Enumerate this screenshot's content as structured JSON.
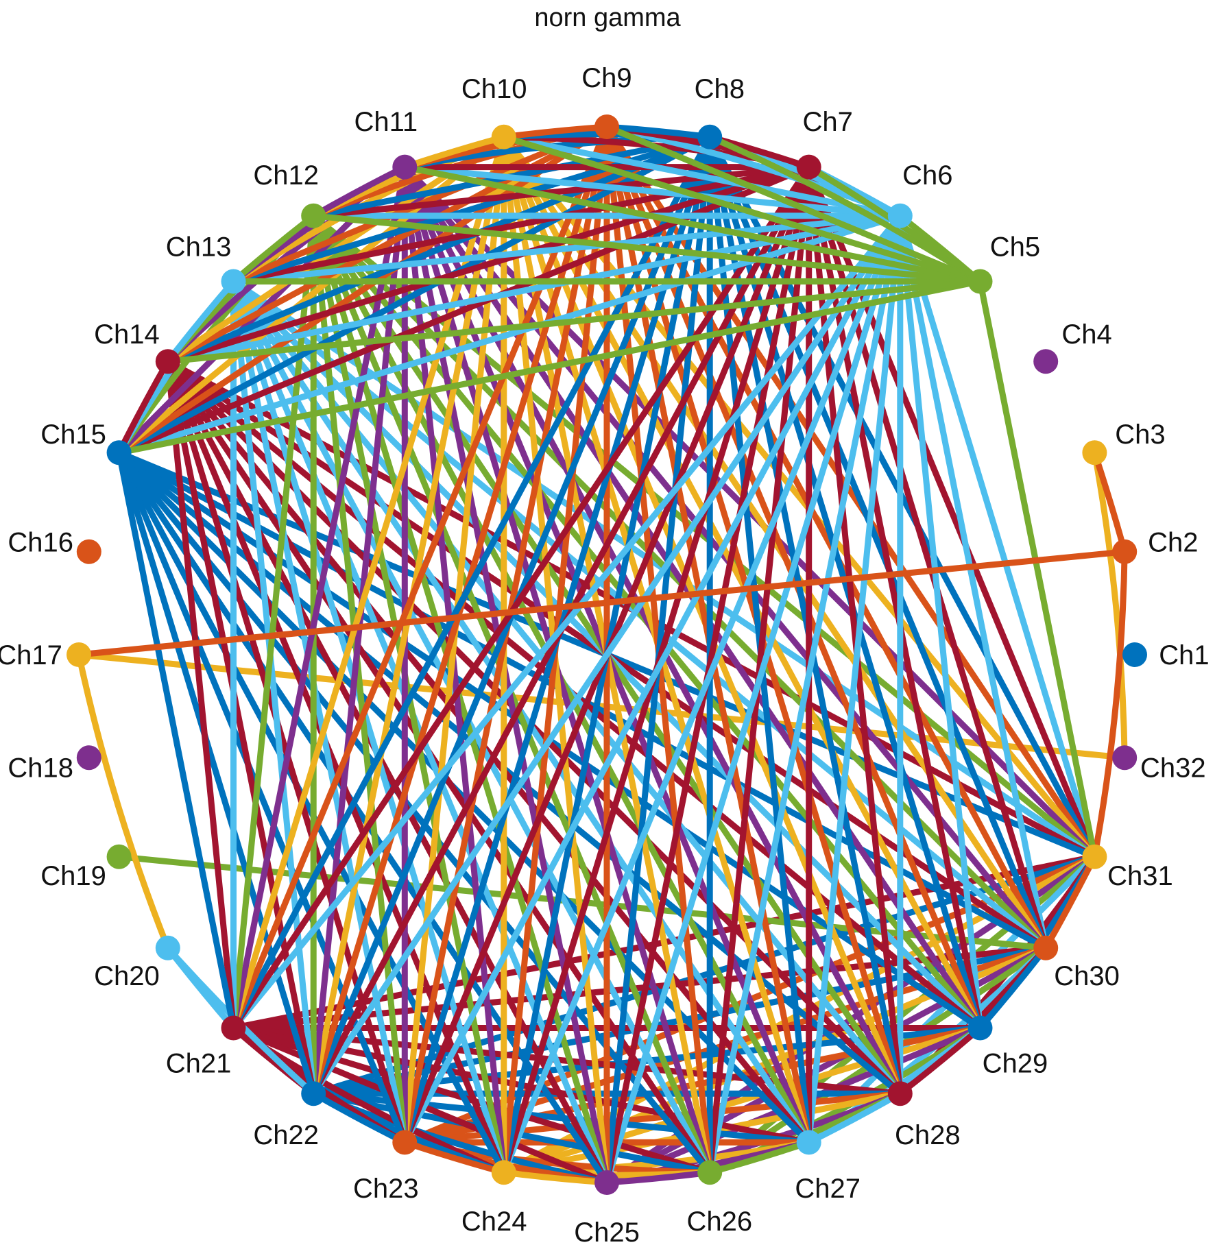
{
  "title": "norn gamma",
  "palette": [
    "#0072BD",
    "#D95319",
    "#EDB120",
    "#7E2F8E",
    "#77AC30",
    "#4DBEEE",
    "#A2142F"
  ],
  "nodes": [
    {
      "id": 1,
      "label": "Ch1",
      "color": "#0072BD"
    },
    {
      "id": 2,
      "label": "Ch2",
      "color": "#D95319"
    },
    {
      "id": 3,
      "label": "Ch3",
      "color": "#EDB120"
    },
    {
      "id": 4,
      "label": "Ch4",
      "color": "#7E2F8E"
    },
    {
      "id": 5,
      "label": "Ch5",
      "color": "#77AC30"
    },
    {
      "id": 6,
      "label": "Ch6",
      "color": "#4DBEEE"
    },
    {
      "id": 7,
      "label": "Ch7",
      "color": "#A2142F"
    },
    {
      "id": 8,
      "label": "Ch8",
      "color": "#0072BD"
    },
    {
      "id": 9,
      "label": "Ch9",
      "color": "#D95319"
    },
    {
      "id": 10,
      "label": "Ch10",
      "color": "#EDB120"
    },
    {
      "id": 11,
      "label": "Ch11",
      "color": "#7E2F8E"
    },
    {
      "id": 12,
      "label": "Ch12",
      "color": "#77AC30"
    },
    {
      "id": 13,
      "label": "Ch13",
      "color": "#4DBEEE"
    },
    {
      "id": 14,
      "label": "Ch14",
      "color": "#A2142F"
    },
    {
      "id": 15,
      "label": "Ch15",
      "color": "#0072BD"
    },
    {
      "id": 16,
      "label": "Ch16",
      "color": "#D95319"
    },
    {
      "id": 17,
      "label": "Ch17",
      "color": "#EDB120"
    },
    {
      "id": 18,
      "label": "Ch18",
      "color": "#7E2F8E"
    },
    {
      "id": 19,
      "label": "Ch19",
      "color": "#77AC30"
    },
    {
      "id": 20,
      "label": "Ch20",
      "color": "#4DBEEE"
    },
    {
      "id": 21,
      "label": "Ch21",
      "color": "#A2142F"
    },
    {
      "id": 22,
      "label": "Ch22",
      "color": "#0072BD"
    },
    {
      "id": 23,
      "label": "Ch23",
      "color": "#D95319"
    },
    {
      "id": 24,
      "label": "Ch24",
      "color": "#EDB120"
    },
    {
      "id": 25,
      "label": "Ch25",
      "color": "#7E2F8E"
    },
    {
      "id": 26,
      "label": "Ch26",
      "color": "#77AC30"
    },
    {
      "id": 27,
      "label": "Ch27",
      "color": "#4DBEEE"
    },
    {
      "id": 28,
      "label": "Ch28",
      "color": "#A2142F"
    },
    {
      "id": 29,
      "label": "Ch29",
      "color": "#0072BD"
    },
    {
      "id": 30,
      "label": "Ch30",
      "color": "#D95319"
    },
    {
      "id": 31,
      "label": "Ch31",
      "color": "#EDB120"
    },
    {
      "id": 32,
      "label": "Ch32",
      "color": "#7E2F8E"
    }
  ],
  "isolated_nodes": [
    1,
    4,
    16,
    18
  ],
  "extra_edges": [
    [
      2,
      3
    ],
    [
      2,
      17
    ],
    [
      2,
      31
    ],
    [
      3,
      32
    ],
    [
      5,
      6
    ],
    [
      5,
      7
    ],
    [
      5,
      8
    ],
    [
      5,
      9
    ],
    [
      5,
      10
    ],
    [
      5,
      11
    ],
    [
      5,
      12
    ],
    [
      5,
      13
    ],
    [
      5,
      14
    ],
    [
      5,
      15
    ],
    [
      5,
      31
    ],
    [
      17,
      32
    ],
    [
      17,
      20
    ],
    [
      19,
      30
    ],
    [
      20,
      21
    ],
    [
      20,
      22
    ]
  ],
  "dense_group": [
    6,
    7,
    8,
    9,
    10,
    11,
    12,
    13,
    14,
    15,
    21,
    22,
    23,
    24,
    25,
    26,
    27,
    28,
    29,
    30,
    31
  ]
}
